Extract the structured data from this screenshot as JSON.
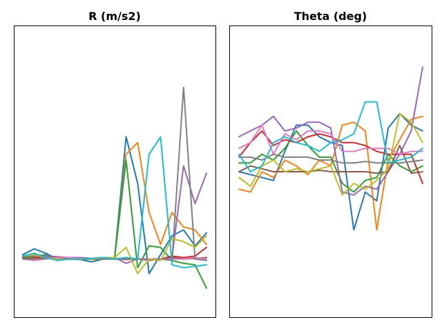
{
  "chart_data": [
    {
      "type": "line",
      "title": "R (m/s2)",
      "xlabel": "",
      "ylabel": "",
      "x": [
        0,
        1,
        2,
        3,
        4,
        5,
        6,
        7,
        8,
        9,
        10,
        11,
        12,
        13,
        14,
        15,
        16
      ],
      "ylim": [
        0,
        1
      ],
      "series": [
        {
          "color": "#1f77b4",
          "values": [
            0.215,
            0.235,
            0.22,
            0.2,
            0.205,
            0.198,
            0.19,
            0.2,
            0.205,
            0.62,
            0.46,
            0.15,
            0.215,
            0.28,
            0.3,
            0.245,
            0.29
          ]
        },
        {
          "color": "#ff7f0e",
          "values": [
            0.21,
            0.215,
            0.212,
            0.205,
            0.2,
            0.202,
            0.198,
            0.2,
            0.202,
            0.56,
            0.6,
            0.36,
            0.25,
            0.36,
            0.31,
            0.3,
            0.25
          ]
        },
        {
          "color": "#2ca02c",
          "values": [
            0.205,
            0.21,
            0.215,
            0.195,
            0.2,
            0.198,
            0.2,
            0.2,
            0.205,
            0.54,
            0.17,
            0.245,
            0.24,
            0.195,
            0.185,
            0.18,
            0.1
          ]
        },
        {
          "color": "#d62728",
          "values": [
            0.2,
            0.205,
            0.208,
            0.202,
            0.2,
            0.198,
            0.2,
            0.202,
            0.2,
            0.198,
            0.2,
            0.2,
            0.2,
            0.21,
            0.205,
            0.21,
            0.24
          ]
        },
        {
          "color": "#9467bd",
          "values": [
            0.21,
            0.212,
            0.21,
            0.208,
            0.205,
            0.205,
            0.202,
            0.205,
            0.205,
            0.185,
            0.2,
            0.195,
            0.2,
            0.205,
            0.52,
            0.39,
            0.495
          ]
        },
        {
          "color": "#8c564b",
          "values": [
            0.205,
            0.2,
            0.205,
            0.2,
            0.2,
            0.2,
            0.202,
            0.2,
            0.2,
            0.205,
            0.2,
            0.2,
            0.2,
            0.205,
            0.2,
            0.202,
            0.205
          ]
        },
        {
          "color": "#e377c2",
          "values": [
            0.2,
            0.195,
            0.2,
            0.205,
            0.205,
            0.2,
            0.2,
            0.2,
            0.2,
            0.2,
            0.2,
            0.2,
            0.2,
            0.2,
            0.2,
            0.205,
            0.2
          ]
        },
        {
          "color": "#7f7f7f",
          "values": [
            0.2,
            0.2,
            0.202,
            0.2,
            0.2,
            0.198,
            0.2,
            0.2,
            0.2,
            0.2,
            0.2,
            0.198,
            0.2,
            0.195,
            0.79,
            0.2,
            0.195
          ]
        },
        {
          "color": "#bcbd22",
          "values": [
            0.21,
            0.215,
            0.205,
            0.2,
            0.198,
            0.2,
            0.2,
            0.205,
            0.205,
            0.24,
            0.15,
            0.2,
            0.195,
            0.27,
            0.26,
            0.24,
            0.28
          ]
        },
        {
          "color": "#17becf",
          "values": [
            0.21,
            0.22,
            0.205,
            0.195,
            0.2,
            0.198,
            0.202,
            0.205,
            0.2,
            0.205,
            0.2,
            0.56,
            0.62,
            0.18,
            0.17,
            0.175,
            0.18
          ]
        }
      ]
    },
    {
      "type": "line",
      "title": "Theta (deg)",
      "xlabel": "",
      "ylabel": "",
      "x": [
        0,
        1,
        2,
        3,
        4,
        5,
        6,
        7,
        8,
        9,
        10,
        11,
        12,
        13,
        14,
        15,
        16
      ],
      "ylim": [
        0,
        1
      ],
      "series": [
        {
          "color": "#1f77b4",
          "values": [
            0.5,
            0.49,
            0.48,
            0.47,
            0.57,
            0.66,
            0.66,
            0.62,
            0.6,
            0.59,
            0.3,
            0.43,
            0.4,
            0.65,
            0.7,
            0.66,
            0.64
          ]
        },
        {
          "color": "#ff7f0e",
          "values": [
            0.44,
            0.43,
            0.5,
            0.48,
            0.54,
            0.52,
            0.49,
            0.54,
            0.52,
            0.66,
            0.67,
            0.64,
            0.3,
            0.54,
            0.61,
            0.68,
            0.69
          ]
        },
        {
          "color": "#2ca02c",
          "values": [
            0.53,
            0.53,
            0.56,
            0.54,
            0.58,
            0.64,
            0.59,
            0.55,
            0.55,
            0.46,
            0.43,
            0.47,
            0.48,
            0.56,
            0.52,
            0.5,
            0.52
          ]
        },
        {
          "color": "#d62728",
          "values": [
            0.55,
            0.6,
            0.64,
            0.59,
            0.61,
            0.6,
            0.62,
            0.63,
            0.62,
            0.6,
            0.6,
            0.59,
            0.57,
            0.56,
            0.56,
            0.56,
            0.46
          ]
        },
        {
          "color": "#9467bd",
          "values": [
            0.62,
            0.64,
            0.66,
            0.69,
            0.64,
            0.65,
            0.67,
            0.67,
            0.65,
            0.43,
            0.42,
            0.45,
            0.44,
            0.5,
            0.56,
            0.64,
            0.86
          ]
        },
        {
          "color": "#8c564b",
          "values": [
            0.5,
            0.52,
            0.51,
            0.5,
            0.5,
            0.5,
            0.5,
            0.505,
            0.5,
            0.5,
            0.5,
            0.5,
            0.495,
            0.5,
            0.59,
            0.495,
            0.5
          ]
        },
        {
          "color": "#e377c2",
          "values": [
            0.58,
            0.6,
            0.66,
            0.56,
            0.63,
            0.61,
            0.64,
            0.64,
            0.63,
            0.57,
            0.57,
            0.58,
            0.58,
            0.58,
            0.56,
            0.57,
            0.57
          ]
        },
        {
          "color": "#7f7f7f",
          "values": [
            0.55,
            0.55,
            0.54,
            0.56,
            0.55,
            0.55,
            0.55,
            0.54,
            0.54,
            0.53,
            0.53,
            0.535,
            0.53,
            0.53,
            0.53,
            0.535,
            0.54
          ]
        },
        {
          "color": "#bcbd22",
          "values": [
            0.48,
            0.45,
            0.52,
            0.54,
            0.5,
            0.51,
            0.5,
            0.51,
            0.52,
            0.42,
            0.46,
            0.44,
            0.47,
            0.51,
            0.7,
            0.67,
            0.6
          ]
        },
        {
          "color": "#17becf",
          "values": [
            0.56,
            0.5,
            0.52,
            0.6,
            0.62,
            0.6,
            0.59,
            0.57,
            0.6,
            0.61,
            0.63,
            0.74,
            0.74,
            0.53,
            0.54,
            0.55,
            0.58
          ]
        }
      ]
    }
  ]
}
